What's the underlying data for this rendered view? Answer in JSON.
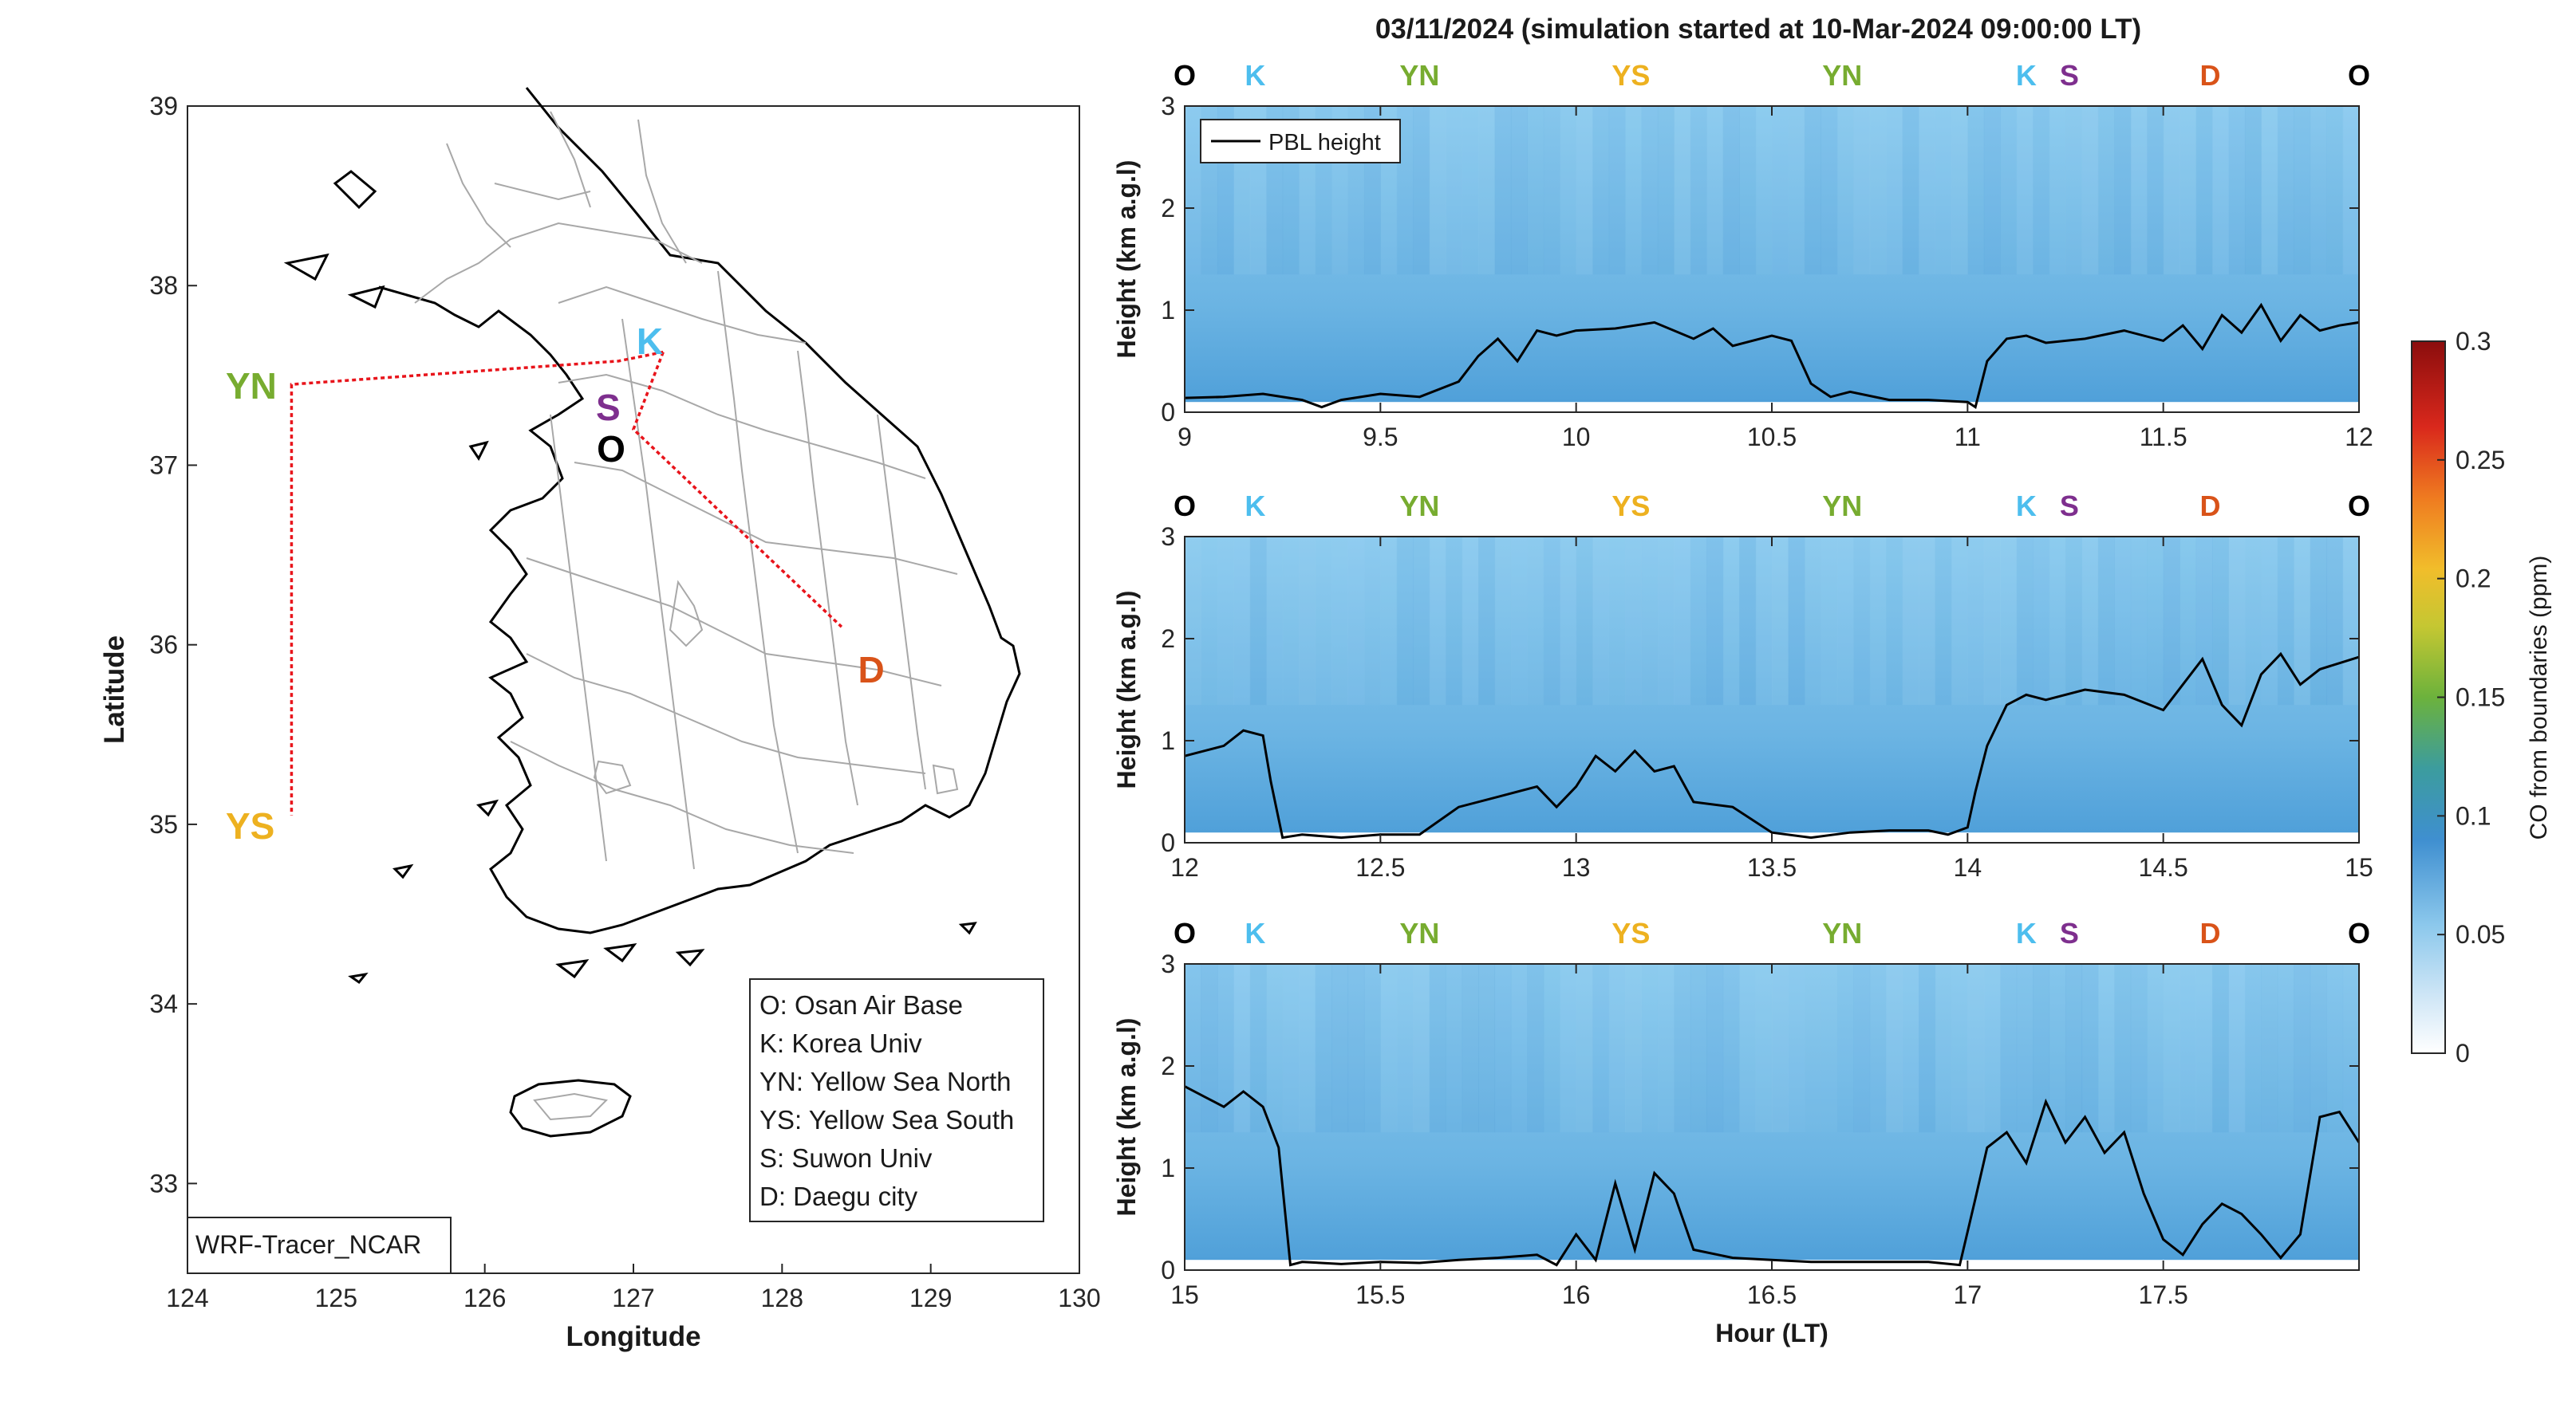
{
  "title": "03/11/2024 (simulation started at 10-Mar-2024 09:00:00 LT)",
  "map": {
    "xlabel": "Longitude",
    "ylabel": "Latitude",
    "xlim": [
      124,
      130
    ],
    "ylim": [
      32.5,
      39
    ],
    "xticks": [
      "124",
      "125",
      "126",
      "127",
      "128",
      "129",
      "130"
    ],
    "yticks": [
      "33",
      "34",
      "35",
      "36",
      "37",
      "38",
      "39"
    ],
    "source_label": "WRF-Tracer_NCAR",
    "sites": [
      {
        "code": "O",
        "lon": 126.85,
        "lat": 37.1,
        "color": "#000000"
      },
      {
        "code": "K",
        "lon": 127.11,
        "lat": 37.7,
        "color": "#4DBEEE"
      },
      {
        "code": "S",
        "lon": 126.83,
        "lat": 37.33,
        "color": "#7E2F8E"
      },
      {
        "code": "D",
        "lon": 128.6,
        "lat": 35.87,
        "color": "#D95319"
      },
      {
        "code": "YN",
        "lon": 124.0,
        "lat": 37.45,
        "color": "#77AC30"
      },
      {
        "code": "YS",
        "lon": 124.0,
        "lat": 35.0,
        "color": "#EDB120"
      }
    ],
    "flight_path": [
      [
        127.2,
        37.63
      ],
      [
        126.9,
        37.58
      ],
      [
        124.7,
        37.45
      ],
      [
        124.7,
        35.05
      ]
    ],
    "flight_path_dash": [
      [
        127.2,
        37.63
      ],
      [
        127.0,
        37.2
      ],
      [
        128.4,
        36.1
      ]
    ],
    "legend": [
      "O: Osan Air Base",
      "K: Korea Univ",
      "YN: Yellow Sea North",
      "YS: Yellow Sea South",
      "S: Suwon Univ",
      "D: Daegu city"
    ]
  },
  "colorbar": {
    "label": "CO from boundaries (ppm)",
    "ticks": [
      "0",
      "0.05",
      "0.1",
      "0.15",
      "0.2",
      "0.25",
      "0.3"
    ],
    "range": [
      0,
      0.3
    ]
  },
  "legend_pbl": "PBL height",
  "chart_data": [
    {
      "type": "heatmap",
      "xlabel": "",
      "ylabel": "Height (km a.g.l)",
      "xlim": [
        9,
        12
      ],
      "ylim": [
        0,
        3
      ],
      "xticks": [
        "9",
        "9.5",
        "10",
        "10.5",
        "11",
        "11.5",
        "12"
      ],
      "yticks": [
        "0",
        "1",
        "2",
        "3"
      ],
      "site_markers": [
        {
          "code": "O",
          "x": 9.0
        },
        {
          "code": "K",
          "x": 9.18
        },
        {
          "code": "YN",
          "x": 9.6
        },
        {
          "code": "YS",
          "x": 10.14
        },
        {
          "code": "YN",
          "x": 10.68
        },
        {
          "code": "K",
          "x": 11.15
        },
        {
          "code": "S",
          "x": 11.26
        },
        {
          "code": "D",
          "x": 11.62
        },
        {
          "code": "O",
          "x": 12.0
        }
      ],
      "series": [
        {
          "name": "PBL height",
          "x": [
            9.0,
            9.1,
            9.2,
            9.3,
            9.35,
            9.4,
            9.5,
            9.6,
            9.7,
            9.75,
            9.8,
            9.85,
            9.9,
            9.95,
            10.0,
            10.1,
            10.2,
            10.3,
            10.35,
            10.4,
            10.5,
            10.55,
            10.6,
            10.65,
            10.7,
            10.8,
            10.9,
            11.0,
            11.02,
            11.05,
            11.1,
            11.15,
            11.2,
            11.3,
            11.4,
            11.5,
            11.55,
            11.6,
            11.65,
            11.7,
            11.75,
            11.8,
            11.85,
            11.9,
            11.95,
            12.0
          ],
          "y": [
            0.14,
            0.15,
            0.18,
            0.12,
            0.05,
            0.12,
            0.18,
            0.15,
            0.3,
            0.55,
            0.72,
            0.5,
            0.8,
            0.75,
            0.8,
            0.82,
            0.88,
            0.72,
            0.82,
            0.65,
            0.75,
            0.7,
            0.28,
            0.15,
            0.2,
            0.12,
            0.12,
            0.1,
            0.05,
            0.5,
            0.72,
            0.75,
            0.68,
            0.72,
            0.8,
            0.7,
            0.85,
            0.62,
            0.95,
            0.78,
            1.05,
            0.7,
            0.95,
            0.8,
            0.85,
            0.88
          ]
        }
      ]
    },
    {
      "type": "heatmap",
      "xlabel": "",
      "ylabel": "Height (km a.g.l)",
      "xlim": [
        12,
        15
      ],
      "ylim": [
        0,
        3
      ],
      "xticks": [
        "12",
        "12.5",
        "13",
        "13.5",
        "14",
        "14.5",
        "15"
      ],
      "yticks": [
        "0",
        "1",
        "2",
        "3"
      ],
      "site_markers": [
        {
          "code": "O",
          "x": 12.0
        },
        {
          "code": "K",
          "x": 12.18
        },
        {
          "code": "YN",
          "x": 12.6
        },
        {
          "code": "YS",
          "x": 13.14
        },
        {
          "code": "YN",
          "x": 13.68
        },
        {
          "code": "K",
          "x": 14.15
        },
        {
          "code": "S",
          "x": 14.26
        },
        {
          "code": "D",
          "x": 14.62
        },
        {
          "code": "O",
          "x": 15.0
        }
      ],
      "series": [
        {
          "name": "PBL height",
          "x": [
            12.0,
            12.05,
            12.1,
            12.15,
            12.2,
            12.22,
            12.25,
            12.3,
            12.4,
            12.5,
            12.6,
            12.7,
            12.8,
            12.9,
            12.95,
            13.0,
            13.05,
            13.1,
            13.15,
            13.2,
            13.25,
            13.3,
            13.4,
            13.5,
            13.6,
            13.7,
            13.8,
            13.9,
            13.95,
            14.0,
            14.02,
            14.05,
            14.1,
            14.15,
            14.2,
            14.3,
            14.4,
            14.5,
            14.55,
            14.6,
            14.65,
            14.7,
            14.75,
            14.8,
            14.85,
            14.9,
            15.0
          ],
          "y": [
            0.85,
            0.9,
            0.95,
            1.1,
            1.05,
            0.6,
            0.05,
            0.08,
            0.05,
            0.08,
            0.08,
            0.35,
            0.45,
            0.55,
            0.35,
            0.55,
            0.85,
            0.7,
            0.9,
            0.7,
            0.75,
            0.4,
            0.35,
            0.1,
            0.05,
            0.1,
            0.12,
            0.12,
            0.08,
            0.15,
            0.5,
            0.95,
            1.35,
            1.45,
            1.4,
            1.5,
            1.45,
            1.3,
            1.55,
            1.8,
            1.35,
            1.15,
            1.65,
            1.85,
            1.55,
            1.7,
            1.82
          ]
        }
      ]
    },
    {
      "type": "heatmap",
      "xlabel": "Hour (LT)",
      "ylabel": "Height (km a.g.l)",
      "xlim": [
        15,
        18
      ],
      "ylim": [
        0,
        3
      ],
      "xticks": [
        "15",
        "15.5",
        "16",
        "16.5",
        "17",
        "17.5"
      ],
      "yticks": [
        "0",
        "1",
        "2",
        "3"
      ],
      "site_markers": [
        {
          "code": "O",
          "x": 15.0
        },
        {
          "code": "K",
          "x": 15.18
        },
        {
          "code": "YN",
          "x": 15.6
        },
        {
          "code": "YS",
          "x": 16.14
        },
        {
          "code": "YN",
          "x": 16.68
        },
        {
          "code": "K",
          "x": 17.15
        },
        {
          "code": "S",
          "x": 17.26
        },
        {
          "code": "D",
          "x": 17.62
        },
        {
          "code": "O",
          "x": 18.0
        }
      ],
      "series": [
        {
          "name": "PBL height",
          "x": [
            15.0,
            15.05,
            15.1,
            15.15,
            15.2,
            15.24,
            15.27,
            15.3,
            15.4,
            15.5,
            15.6,
            15.7,
            15.8,
            15.9,
            15.95,
            16.0,
            16.05,
            16.1,
            16.15,
            16.2,
            16.25,
            16.3,
            16.4,
            16.5,
            16.6,
            16.7,
            16.8,
            16.9,
            16.98,
            17.02,
            17.05,
            17.1,
            17.15,
            17.2,
            17.25,
            17.3,
            17.35,
            17.4,
            17.45,
            17.5,
            17.55,
            17.6,
            17.65,
            17.7,
            17.75,
            17.8,
            17.85,
            17.9,
            17.95,
            18.0
          ],
          "y": [
            1.8,
            1.7,
            1.6,
            1.75,
            1.6,
            1.2,
            0.05,
            0.08,
            0.06,
            0.08,
            0.07,
            0.1,
            0.12,
            0.15,
            0.05,
            0.35,
            0.1,
            0.85,
            0.2,
            0.95,
            0.75,
            0.2,
            0.12,
            0.1,
            0.08,
            0.08,
            0.08,
            0.08,
            0.05,
            0.7,
            1.2,
            1.35,
            1.05,
            1.65,
            1.25,
            1.5,
            1.15,
            1.35,
            0.75,
            0.3,
            0.15,
            0.45,
            0.65,
            0.55,
            0.35,
            0.12,
            0.35,
            1.5,
            1.55,
            1.25
          ]
        }
      ]
    }
  ]
}
